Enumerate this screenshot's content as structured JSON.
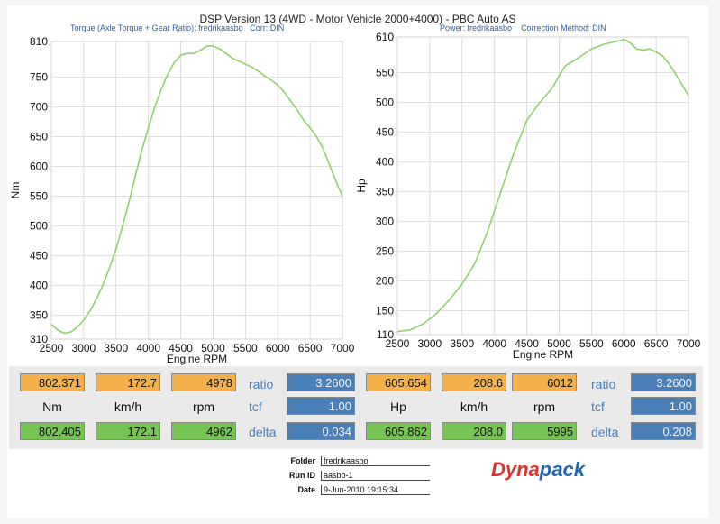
{
  "header": {
    "title": "DSP Version 13 (4WD - Motor Vehicle 2000+4000) - PBC Auto AS",
    "left_sub": "Torque (Axle Torque + Gear Ratio): fredrikaasbo",
    "left_corr": "Corr: DIN",
    "right_sub": "Power: fredrikaasbo",
    "right_corr": "Correction Method: DIN"
  },
  "chart_data": [
    {
      "type": "line",
      "xlabel": "Engine RPM",
      "ylabel": "Nm",
      "xlim": [
        2500,
        7000
      ],
      "ylim": [
        310,
        810
      ],
      "xticks": [
        2500,
        3000,
        3500,
        4000,
        4500,
        5000,
        5500,
        6000,
        6500,
        7000
      ],
      "yticks": [
        310,
        350,
        400,
        450,
        500,
        550,
        600,
        650,
        700,
        750,
        810
      ],
      "grid": true,
      "series": [
        {
          "color": "#8fd16a",
          "x": [
            2500,
            2600,
            2700,
            2800,
            2900,
            3000,
            3100,
            3200,
            3300,
            3400,
            3500,
            3600,
            3700,
            3800,
            3900,
            4000,
            4100,
            4200,
            4300,
            4400,
            4500,
            4600,
            4700,
            4800,
            4900,
            4978,
            5100,
            5200,
            5300,
            5400,
            5500,
            5600,
            5700,
            5800,
            5900,
            6000,
            6100,
            6200,
            6300,
            6400,
            6500,
            6600,
            6700,
            6800,
            6900,
            7000
          ],
          "y": [
            335,
            325,
            320,
            322,
            330,
            342,
            358,
            378,
            402,
            430,
            462,
            500,
            540,
            585,
            628,
            665,
            700,
            730,
            755,
            775,
            787,
            790,
            790,
            795,
            802,
            803,
            798,
            790,
            782,
            777,
            772,
            767,
            760,
            752,
            745,
            737,
            725,
            710,
            695,
            678,
            665,
            650,
            630,
            603,
            575,
            550
          ]
        }
      ]
    },
    {
      "type": "line",
      "xlabel": "Engine RPM",
      "ylabel": "Hp",
      "xlim": [
        2500,
        7000
      ],
      "ylim": [
        110,
        610
      ],
      "xticks": [
        2500,
        3000,
        3500,
        4000,
        4500,
        5000,
        5500,
        6000,
        6500,
        7000
      ],
      "yticks": [
        110,
        150,
        200,
        250,
        300,
        350,
        400,
        450,
        500,
        550,
        610
      ],
      "grid": true,
      "series": [
        {
          "color": "#8fd16a",
          "x": [
            2500,
            2700,
            2900,
            3100,
            3300,
            3500,
            3700,
            3900,
            4100,
            4300,
            4500,
            4700,
            4900,
            5000,
            5100,
            5300,
            5500,
            5700,
            5900,
            6012,
            6100,
            6200,
            6300,
            6400,
            6500,
            6600,
            6700,
            6800,
            6900,
            7000
          ],
          "y": [
            115,
            118,
            128,
            145,
            168,
            195,
            230,
            285,
            350,
            415,
            470,
            500,
            525,
            545,
            562,
            575,
            590,
            598,
            603,
            606,
            600,
            590,
            588,
            590,
            585,
            578,
            565,
            548,
            530,
            512
          ]
        }
      ]
    }
  ],
  "readout": {
    "torque": {
      "value": "802.371",
      "kmh": "172.7",
      "rpm": "4978",
      "ratio": "3.2600",
      "tcf": "1.00",
      "delta": "0.034",
      "value2": "802.405",
      "kmh2": "172.1",
      "rpm2": "4962",
      "unit": "Nm",
      "kmh_label": "km/h",
      "rpm_label": "rpm",
      "ratio_label": "ratio",
      "tcf_label": "tcf",
      "delta_label": "delta"
    },
    "power": {
      "value": "605.654",
      "kmh": "208.6",
      "rpm": "6012",
      "ratio": "3.2600",
      "tcf": "1.00",
      "delta": "0.208",
      "value2": "605.862",
      "kmh2": "208.0",
      "rpm2": "5995",
      "unit": "Hp",
      "kmh_label": "km/h",
      "rpm_label": "rpm",
      "ratio_label": "ratio",
      "tcf_label": "tcf",
      "delta_label": "delta"
    }
  },
  "info": {
    "folder_label": "Folder",
    "folder": "fredrikaasbo",
    "runid_label": "Run ID",
    "runid": "aasbo-1",
    "date_label": "Date",
    "date": "9-Jun-2010 19:15:34"
  },
  "logo": {
    "text1": "Dyna",
    "text2": "pack",
    "color1": "#e0322b",
    "color2": "#2166b8"
  }
}
